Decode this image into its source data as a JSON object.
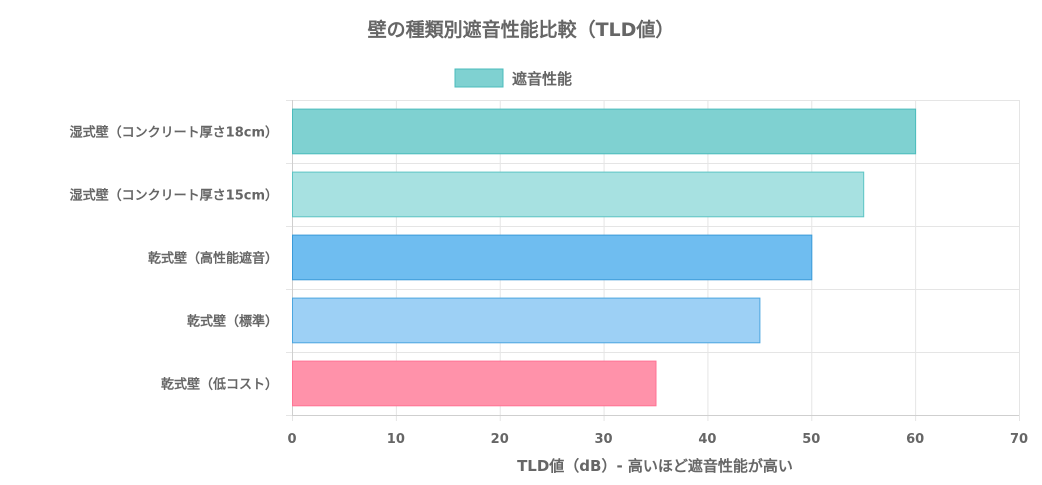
{
  "chart_data": {
    "type": "bar",
    "orientation": "horizontal",
    "title": "壁の種類別遮音性能比較（TLD値）",
    "legend": {
      "label": "遮音性能",
      "color": "#7fd1d1",
      "position": "top"
    },
    "categories": [
      "湿式壁（コンクリート厚さ18cm）",
      "湿式壁（コンクリート厚さ15cm）",
      "乾式壁（高性能遮音）",
      "乾式壁（標準）",
      "乾式壁（低コスト）"
    ],
    "series": [
      {
        "name": "遮音性能",
        "values": [
          60,
          55,
          50,
          45,
          35
        ]
      }
    ],
    "bar_colors": [
      {
        "fill": "#7fd1d1",
        "stroke": "#4bbcbc"
      },
      {
        "fill": "#a7e1e1",
        "stroke": "#5cc4c4"
      },
      {
        "fill": "#6fbdf0",
        "stroke": "#3a9ad8"
      },
      {
        "fill": "#9dd0f5",
        "stroke": "#4ba6e0"
      },
      {
        "fill": "#ff92aa",
        "stroke": "#ff7394"
      }
    ],
    "xlabel": "TLD値（dB）- 高いほど遮音性能が高い",
    "ylabel": "",
    "xlim": [
      0,
      70
    ],
    "xticks": [
      0,
      10,
      20,
      30,
      40,
      50,
      60,
      70
    ],
    "grid": true
  }
}
